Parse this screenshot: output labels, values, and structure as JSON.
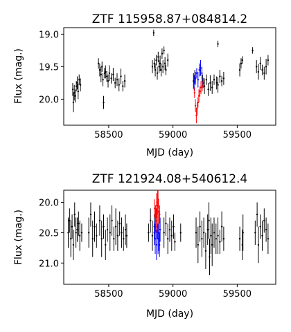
{
  "chart_data": [
    {
      "type": "scatter",
      "title": "ZTF 115958.87+084814.2",
      "xlabel": "MJD (day)",
      "ylabel": "Flux (mag.)",
      "xlim": [
        58150,
        59800
      ],
      "ylim": [
        20.4,
        18.9
      ],
      "y_inverted": true,
      "grid": false,
      "xticks": [
        58500,
        59000,
        59500
      ],
      "yticks": [
        19.0,
        19.5,
        20.0
      ],
      "xtick_labels": [
        "58500",
        "59000",
        "59500"
      ],
      "ytick_labels": [
        "19.0",
        "19.5",
        "20.0"
      ],
      "series": [
        {
          "color": "#000000",
          "points": [
            [
              58220,
              19.85,
              0.1
            ],
            [
              58225,
              20.05,
              0.15
            ],
            [
              58232,
              19.9,
              0.12
            ],
            [
              58240,
              19.95,
              0.1
            ],
            [
              58248,
              19.8,
              0.08
            ],
            [
              58255,
              19.75,
              0.1
            ],
            [
              58262,
              19.88,
              0.12
            ],
            [
              58270,
              19.7,
              0.08
            ],
            [
              58280,
              19.78,
              0.1
            ],
            [
              58420,
              19.45,
              0.08
            ],
            [
              58430,
              19.55,
              0.1
            ],
            [
              58440,
              19.62,
              0.12
            ],
            [
              58448,
              19.5,
              0.08
            ],
            [
              58455,
              19.7,
              0.1
            ],
            [
              58460,
              20.05,
              0.1
            ],
            [
              58468,
              19.6,
              0.08
            ],
            [
              58475,
              19.58,
              0.1
            ],
            [
              58485,
              19.65,
              0.08
            ],
            [
              58495,
              19.72,
              0.1
            ],
            [
              58505,
              19.6,
              0.12
            ],
            [
              58520,
              19.68,
              0.08
            ],
            [
              58535,
              19.62,
              0.1
            ],
            [
              58550,
              19.75,
              0.08
            ],
            [
              58565,
              19.7,
              0.1
            ],
            [
              58580,
              19.78,
              0.1
            ],
            [
              58595,
              19.65,
              0.12
            ],
            [
              58610,
              19.8,
              0.08
            ],
            [
              58625,
              19.72,
              0.1
            ],
            [
              58840,
              19.5,
              0.1
            ],
            [
              58850,
              18.98,
              0.05
            ],
            [
              58855,
              19.45,
              0.08
            ],
            [
              58862,
              19.55,
              0.1
            ],
            [
              58870,
              19.4,
              0.08
            ],
            [
              58878,
              19.6,
              0.1
            ],
            [
              58885,
              19.35,
              0.08
            ],
            [
              58892,
              19.5,
              0.1
            ],
            [
              58900,
              19.45,
              0.12
            ],
            [
              58908,
              19.55,
              0.1
            ],
            [
              58915,
              19.3,
              0.08
            ],
            [
              58922,
              19.5,
              0.1
            ],
            [
              58930,
              19.25,
              0.06
            ],
            [
              58938,
              19.45,
              0.1
            ],
            [
              58945,
              19.55,
              0.08
            ],
            [
              58960,
              19.4,
              0.1
            ],
            [
              59160,
              19.72,
              0.12
            ],
            [
              59170,
              19.65,
              0.1
            ],
            [
              59230,
              19.72,
              0.1
            ],
            [
              59245,
              19.8,
              0.12
            ],
            [
              59260,
              19.7,
              0.08
            ],
            [
              59275,
              19.85,
              0.1
            ],
            [
              59290,
              19.75,
              0.12
            ],
            [
              59305,
              19.82,
              0.1
            ],
            [
              59320,
              19.7,
              0.08
            ],
            [
              59340,
              19.75,
              0.1
            ],
            [
              59350,
              19.78,
              0.12
            ],
            [
              59365,
              19.65,
              0.1
            ],
            [
              59380,
              19.72,
              0.08
            ],
            [
              59395,
              19.68,
              0.1
            ],
            [
              59350,
              19.15,
              0.05
            ],
            [
              59520,
              19.55,
              0.1
            ],
            [
              59530,
              19.45,
              0.08
            ],
            [
              59540,
              19.4,
              0.06
            ],
            [
              59620,
              19.25,
              0.05
            ],
            [
              59650,
              19.5,
              0.1
            ],
            [
              59665,
              19.58,
              0.12
            ],
            [
              59680,
              19.45,
              0.1
            ],
            [
              59695,
              19.55,
              0.08
            ],
            [
              59710,
              19.6,
              0.1
            ],
            [
              59725,
              19.5,
              0.12
            ],
            [
              59740,
              19.4,
              0.08
            ]
          ]
        },
        {
          "color": "#0000ff",
          "points": [
            [
              59165,
              19.75,
              0.12
            ],
            [
              59175,
              19.68,
              0.1
            ],
            [
              59185,
              19.6,
              0.08
            ],
            [
              59195,
              19.7,
              0.12
            ],
            [
              59205,
              19.55,
              0.1
            ],
            [
              59215,
              19.52,
              0.12
            ],
            [
              59225,
              19.6,
              0.1
            ],
            [
              59235,
              19.75,
              0.08
            ]
          ]
        },
        {
          "color": "#ff0000",
          "points": [
            [
              59168,
              19.9,
              0.08
            ],
            [
              59175,
              20.1,
              0.1
            ],
            [
              59182,
              20.25,
              0.12
            ],
            [
              59188,
              20.15,
              0.1
            ],
            [
              59195,
              20.05,
              0.08
            ],
            [
              59202,
              19.95,
              0.1
            ],
            [
              59210,
              19.88,
              0.08
            ],
            [
              59218,
              19.82,
              0.1
            ],
            [
              59228,
              19.8,
              0.08
            ]
          ]
        }
      ]
    },
    {
      "type": "scatter",
      "title": "ZTF 121924.08+540612.4",
      "xlabel": "MJD (day)",
      "ylabel": "Flux (mag.)",
      "xlim": [
        58150,
        59800
      ],
      "ylim": [
        21.35,
        19.8
      ],
      "y_inverted": true,
      "grid": false,
      "xticks": [
        58500,
        59000,
        59500
      ],
      "yticks": [
        20.0,
        20.5,
        21.0
      ],
      "xtick_labels": [
        "58500",
        "59000",
        "59500"
      ],
      "ytick_labels": [
        "20.0",
        "20.5",
        "21.0"
      ],
      "series": [
        {
          "color": "#000000",
          "points": [
            [
              58185,
              20.5,
              0.25
            ],
            [
              58195,
              20.3,
              0.2
            ],
            [
              58205,
              20.6,
              0.3
            ],
            [
              58215,
              20.4,
              0.2
            ],
            [
              58225,
              20.7,
              0.25
            ],
            [
              58235,
              20.2,
              0.2
            ],
            [
              58245,
              20.5,
              0.25
            ],
            [
              58255,
              20.45,
              0.2
            ],
            [
              58265,
              20.35,
              0.2
            ],
            [
              58275,
              20.55,
              0.25
            ],
            [
              58290,
              20.5,
              0.15
            ],
            [
              58345,
              20.5,
              0.25
            ],
            [
              58360,
              20.2,
              0.2
            ],
            [
              58375,
              20.6,
              0.3
            ],
            [
              58390,
              20.4,
              0.25
            ],
            [
              58405,
              20.55,
              0.2
            ],
            [
              58430,
              20.3,
              0.25
            ],
            [
              58445,
              20.6,
              0.3
            ],
            [
              58460,
              20.4,
              0.2
            ],
            [
              58475,
              20.7,
              0.25
            ],
            [
              58490,
              20.45,
              0.2
            ],
            [
              58510,
              20.5,
              0.3
            ],
            [
              58525,
              20.3,
              0.25
            ],
            [
              58540,
              20.6,
              0.2
            ],
            [
              58555,
              20.4,
              0.3
            ],
            [
              58570,
              20.55,
              0.25
            ],
            [
              58585,
              20.35,
              0.2
            ],
            [
              58600,
              20.5,
              0.25
            ],
            [
              58615,
              20.6,
              0.2
            ],
            [
              58630,
              20.45,
              0.25
            ],
            [
              58640,
              20.55,
              0.2
            ],
            [
              58810,
              20.5,
              0.15
            ],
            [
              58825,
              20.3,
              0.2
            ],
            [
              58840,
              20.55,
              0.25
            ],
            [
              58855,
              20.4,
              0.2
            ],
            [
              58930,
              20.5,
              0.25
            ],
            [
              58945,
              20.35,
              0.2
            ],
            [
              58960,
              20.6,
              0.25
            ],
            [
              58975,
              20.45,
              0.2
            ],
            [
              58990,
              20.55,
              0.25
            ],
            [
              59005,
              20.4,
              0.2
            ],
            [
              59015,
              20.65,
              0.15
            ],
            [
              59060,
              20.5,
              0.15
            ],
            [
              59180,
              20.5,
              0.25
            ],
            [
              59195,
              20.7,
              0.3
            ],
            [
              59210,
              20.4,
              0.25
            ],
            [
              59225,
              20.6,
              0.3
            ],
            [
              59240,
              20.5,
              0.25
            ],
            [
              59255,
              20.8,
              0.3
            ],
            [
              59270,
              20.45,
              0.25
            ],
            [
              59280,
              20.3,
              0.3
            ],
            [
              59285,
              20.9,
              0.3
            ],
            [
              59295,
              20.55,
              0.3
            ],
            [
              59305,
              20.7,
              0.35
            ],
            [
              59320,
              20.5,
              0.25
            ],
            [
              59335,
              20.6,
              0.25
            ],
            [
              59350,
              20.55,
              0.3
            ],
            [
              59365,
              20.65,
              0.2
            ],
            [
              59380,
              20.4,
              0.25
            ],
            [
              59395,
              20.6,
              0.2
            ],
            [
              59520,
              20.6,
              0.2
            ],
            [
              59540,
              20.7,
              0.25
            ],
            [
              59545,
              20.5,
              0.3
            ],
            [
              59640,
              20.5,
              0.2
            ],
            [
              59655,
              20.2,
              0.2
            ],
            [
              59665,
              20.7,
              0.3
            ],
            [
              59680,
              20.4,
              0.2
            ],
            [
              59695,
              20.55,
              0.25
            ],
            [
              59710,
              20.3,
              0.2
            ],
            [
              59725,
              20.45,
              0.2
            ],
            [
              59740,
              20.6,
              0.25
            ]
          ]
        },
        {
          "color": "#0000ff",
          "points": [
            [
              58855,
              20.5,
              0.2
            ],
            [
              58862,
              20.6,
              0.25
            ],
            [
              58868,
              20.3,
              0.2
            ],
            [
              58872,
              20.7,
              0.25
            ],
            [
              58878,
              20.4,
              0.2
            ],
            [
              58884,
              20.6,
              0.25
            ],
            [
              58890,
              20.5,
              0.3
            ],
            [
              58895,
              20.7,
              0.2
            ],
            [
              58900,
              20.45,
              0.2
            ]
          ]
        },
        {
          "color": "#ff0000",
          "points": [
            [
              58858,
              20.1,
              0.15
            ],
            [
              58864,
              20.2,
              0.15
            ],
            [
              58868,
              20.3,
              0.2
            ],
            [
              58872,
              20.05,
              0.2
            ],
            [
              58876,
              20.25,
              0.15
            ],
            [
              58880,
              20.0,
              0.2
            ],
            [
              58884,
              19.95,
              0.15
            ],
            [
              58888,
              20.15,
              0.2
            ],
            [
              58892,
              20.3,
              0.15
            ],
            [
              58896,
              20.2,
              0.15
            ]
          ]
        }
      ]
    }
  ]
}
